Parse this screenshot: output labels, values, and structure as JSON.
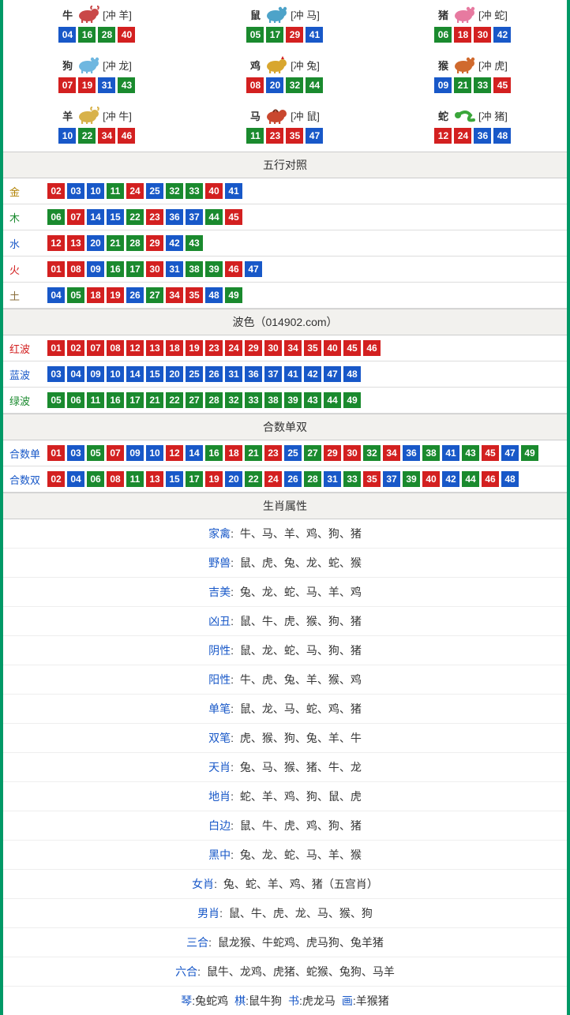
{
  "colors": {
    "accent_border": "#009966",
    "num_red": "#d32020",
    "num_blue": "#1858c8",
    "num_green": "#1a8a2e",
    "row_bg": "#ffffff",
    "header_bg": "#f2f1ee",
    "label_gold": "#b08000",
    "label_wood": "#1a8a2e",
    "label_water": "#1858c8",
    "label_fire": "#d32020",
    "label_earth": "#8a6d3b",
    "text": "#333333",
    "attr_key": "#1858c8"
  },
  "zodiac": {
    "cells": [
      {
        "name": "牛",
        "clash": "[冲 羊]",
        "icon": "ox",
        "icon_color": "#c94848",
        "nums": [
          {
            "v": "04",
            "c": "blue"
          },
          {
            "v": "16",
            "c": "green"
          },
          {
            "v": "28",
            "c": "green"
          },
          {
            "v": "40",
            "c": "red"
          }
        ]
      },
      {
        "name": "鼠",
        "clash": "[冲 马]",
        "icon": "rat",
        "icon_color": "#4da3c9",
        "nums": [
          {
            "v": "05",
            "c": "green"
          },
          {
            "v": "17",
            "c": "green"
          },
          {
            "v": "29",
            "c": "red"
          },
          {
            "v": "41",
            "c": "blue"
          }
        ]
      },
      {
        "name": "猪",
        "clash": "[冲 蛇]",
        "icon": "pig",
        "icon_color": "#e77aa0",
        "nums": [
          {
            "v": "06",
            "c": "green"
          },
          {
            "v": "18",
            "c": "red"
          },
          {
            "v": "30",
            "c": "red"
          },
          {
            "v": "42",
            "c": "blue"
          }
        ]
      },
      {
        "name": "狗",
        "clash": "[冲 龙]",
        "icon": "dog",
        "icon_color": "#6fb7e0",
        "nums": [
          {
            "v": "07",
            "c": "red"
          },
          {
            "v": "19",
            "c": "red"
          },
          {
            "v": "31",
            "c": "blue"
          },
          {
            "v": "43",
            "c": "green"
          }
        ]
      },
      {
        "name": "鸡",
        "clash": "[冲 兔]",
        "icon": "rooster",
        "icon_color": "#d8a62e",
        "nums": [
          {
            "v": "08",
            "c": "red"
          },
          {
            "v": "20",
            "c": "blue"
          },
          {
            "v": "32",
            "c": "green"
          },
          {
            "v": "44",
            "c": "green"
          }
        ]
      },
      {
        "name": "猴",
        "clash": "[冲 虎]",
        "icon": "monkey",
        "icon_color": "#d06a2e",
        "nums": [
          {
            "v": "09",
            "c": "blue"
          },
          {
            "v": "21",
            "c": "green"
          },
          {
            "v": "33",
            "c": "green"
          },
          {
            "v": "45",
            "c": "red"
          }
        ]
      },
      {
        "name": "羊",
        "clash": "[冲 牛]",
        "icon": "goat",
        "icon_color": "#d8b24a",
        "nums": [
          {
            "v": "10",
            "c": "blue"
          },
          {
            "v": "22",
            "c": "green"
          },
          {
            "v": "34",
            "c": "red"
          },
          {
            "v": "46",
            "c": "red"
          }
        ]
      },
      {
        "name": "马",
        "clash": "[冲 鼠]",
        "icon": "horse",
        "icon_color": "#c9472e",
        "nums": [
          {
            "v": "11",
            "c": "green"
          },
          {
            "v": "23",
            "c": "red"
          },
          {
            "v": "35",
            "c": "red"
          },
          {
            "v": "47",
            "c": "blue"
          }
        ]
      },
      {
        "name": "蛇",
        "clash": "[冲 猪]",
        "icon": "snake",
        "icon_color": "#3aa63a",
        "nums": [
          {
            "v": "12",
            "c": "red"
          },
          {
            "v": "24",
            "c": "red"
          },
          {
            "v": "36",
            "c": "blue"
          },
          {
            "v": "48",
            "c": "blue"
          }
        ]
      }
    ]
  },
  "wuxing": {
    "header": "五行对照",
    "rows": [
      {
        "label": "金",
        "label_class": "lbl-gold",
        "nums": [
          {
            "v": "02",
            "c": "red"
          },
          {
            "v": "03",
            "c": "blue"
          },
          {
            "v": "10",
            "c": "blue"
          },
          {
            "v": "11",
            "c": "green"
          },
          {
            "v": "24",
            "c": "red"
          },
          {
            "v": "25",
            "c": "blue"
          },
          {
            "v": "32",
            "c": "green"
          },
          {
            "v": "33",
            "c": "green"
          },
          {
            "v": "40",
            "c": "red"
          },
          {
            "v": "41",
            "c": "blue"
          }
        ]
      },
      {
        "label": "木",
        "label_class": "lbl-wood",
        "nums": [
          {
            "v": "06",
            "c": "green"
          },
          {
            "v": "07",
            "c": "red"
          },
          {
            "v": "14",
            "c": "blue"
          },
          {
            "v": "15",
            "c": "blue"
          },
          {
            "v": "22",
            "c": "green"
          },
          {
            "v": "23",
            "c": "red"
          },
          {
            "v": "36",
            "c": "blue"
          },
          {
            "v": "37",
            "c": "blue"
          },
          {
            "v": "44",
            "c": "green"
          },
          {
            "v": "45",
            "c": "red"
          }
        ]
      },
      {
        "label": "水",
        "label_class": "lbl-water",
        "nums": [
          {
            "v": "12",
            "c": "red"
          },
          {
            "v": "13",
            "c": "red"
          },
          {
            "v": "20",
            "c": "blue"
          },
          {
            "v": "21",
            "c": "green"
          },
          {
            "v": "28",
            "c": "green"
          },
          {
            "v": "29",
            "c": "red"
          },
          {
            "v": "42",
            "c": "blue"
          },
          {
            "v": "43",
            "c": "green"
          }
        ]
      },
      {
        "label": "火",
        "label_class": "lbl-fire",
        "nums": [
          {
            "v": "01",
            "c": "red"
          },
          {
            "v": "08",
            "c": "red"
          },
          {
            "v": "09",
            "c": "blue"
          },
          {
            "v": "16",
            "c": "green"
          },
          {
            "v": "17",
            "c": "green"
          },
          {
            "v": "30",
            "c": "red"
          },
          {
            "v": "31",
            "c": "blue"
          },
          {
            "v": "38",
            "c": "green"
          },
          {
            "v": "39",
            "c": "green"
          },
          {
            "v": "46",
            "c": "red"
          },
          {
            "v": "47",
            "c": "blue"
          }
        ]
      },
      {
        "label": "土",
        "label_class": "lbl-earth",
        "nums": [
          {
            "v": "04",
            "c": "blue"
          },
          {
            "v": "05",
            "c": "green"
          },
          {
            "v": "18",
            "c": "red"
          },
          {
            "v": "19",
            "c": "red"
          },
          {
            "v": "26",
            "c": "blue"
          },
          {
            "v": "27",
            "c": "green"
          },
          {
            "v": "34",
            "c": "red"
          },
          {
            "v": "35",
            "c": "red"
          },
          {
            "v": "48",
            "c": "blue"
          },
          {
            "v": "49",
            "c": "green"
          }
        ]
      }
    ]
  },
  "bose": {
    "header": "波色（014902.com）",
    "rows": [
      {
        "label": "红波",
        "label_class": "lbl-red",
        "nums": [
          {
            "v": "01",
            "c": "red"
          },
          {
            "v": "02",
            "c": "red"
          },
          {
            "v": "07",
            "c": "red"
          },
          {
            "v": "08",
            "c": "red"
          },
          {
            "v": "12",
            "c": "red"
          },
          {
            "v": "13",
            "c": "red"
          },
          {
            "v": "18",
            "c": "red"
          },
          {
            "v": "19",
            "c": "red"
          },
          {
            "v": "23",
            "c": "red"
          },
          {
            "v": "24",
            "c": "red"
          },
          {
            "v": "29",
            "c": "red"
          },
          {
            "v": "30",
            "c": "red"
          },
          {
            "v": "34",
            "c": "red"
          },
          {
            "v": "35",
            "c": "red"
          },
          {
            "v": "40",
            "c": "red"
          },
          {
            "v": "45",
            "c": "red"
          },
          {
            "v": "46",
            "c": "red"
          }
        ]
      },
      {
        "label": "蓝波",
        "label_class": "lbl-blue",
        "nums": [
          {
            "v": "03",
            "c": "blue"
          },
          {
            "v": "04",
            "c": "blue"
          },
          {
            "v": "09",
            "c": "blue"
          },
          {
            "v": "10",
            "c": "blue"
          },
          {
            "v": "14",
            "c": "blue"
          },
          {
            "v": "15",
            "c": "blue"
          },
          {
            "v": "20",
            "c": "blue"
          },
          {
            "v": "25",
            "c": "blue"
          },
          {
            "v": "26",
            "c": "blue"
          },
          {
            "v": "31",
            "c": "blue"
          },
          {
            "v": "36",
            "c": "blue"
          },
          {
            "v": "37",
            "c": "blue"
          },
          {
            "v": "41",
            "c": "blue"
          },
          {
            "v": "42",
            "c": "blue"
          },
          {
            "v": "47",
            "c": "blue"
          },
          {
            "v": "48",
            "c": "blue"
          }
        ]
      },
      {
        "label": "绿波",
        "label_class": "lbl-green",
        "nums": [
          {
            "v": "05",
            "c": "green"
          },
          {
            "v": "06",
            "c": "green"
          },
          {
            "v": "11",
            "c": "green"
          },
          {
            "v": "16",
            "c": "green"
          },
          {
            "v": "17",
            "c": "green"
          },
          {
            "v": "21",
            "c": "green"
          },
          {
            "v": "22",
            "c": "green"
          },
          {
            "v": "27",
            "c": "green"
          },
          {
            "v": "28",
            "c": "green"
          },
          {
            "v": "32",
            "c": "green"
          },
          {
            "v": "33",
            "c": "green"
          },
          {
            "v": "38",
            "c": "green"
          },
          {
            "v": "39",
            "c": "green"
          },
          {
            "v": "43",
            "c": "green"
          },
          {
            "v": "44",
            "c": "green"
          },
          {
            "v": "49",
            "c": "green"
          }
        ]
      }
    ]
  },
  "heshu": {
    "header": "合数单双",
    "rows": [
      {
        "label": "合数单",
        "label_class": "lbl-blue",
        "nums": [
          {
            "v": "01",
            "c": "red"
          },
          {
            "v": "03",
            "c": "blue"
          },
          {
            "v": "05",
            "c": "green"
          },
          {
            "v": "07",
            "c": "red"
          },
          {
            "v": "09",
            "c": "blue"
          },
          {
            "v": "10",
            "c": "blue"
          },
          {
            "v": "12",
            "c": "red"
          },
          {
            "v": "14",
            "c": "blue"
          },
          {
            "v": "16",
            "c": "green"
          },
          {
            "v": "18",
            "c": "red"
          },
          {
            "v": "21",
            "c": "green"
          },
          {
            "v": "23",
            "c": "red"
          },
          {
            "v": "25",
            "c": "blue"
          },
          {
            "v": "27",
            "c": "green"
          },
          {
            "v": "29",
            "c": "red"
          },
          {
            "v": "30",
            "c": "red"
          },
          {
            "v": "32",
            "c": "green"
          },
          {
            "v": "34",
            "c": "red"
          },
          {
            "v": "36",
            "c": "blue"
          },
          {
            "v": "38",
            "c": "green"
          },
          {
            "v": "41",
            "c": "blue"
          },
          {
            "v": "43",
            "c": "green"
          },
          {
            "v": "45",
            "c": "red"
          },
          {
            "v": "47",
            "c": "blue"
          },
          {
            "v": "49",
            "c": "green"
          }
        ]
      },
      {
        "label": "合数双",
        "label_class": "lbl-blue",
        "nums": [
          {
            "v": "02",
            "c": "red"
          },
          {
            "v": "04",
            "c": "blue"
          },
          {
            "v": "06",
            "c": "green"
          },
          {
            "v": "08",
            "c": "red"
          },
          {
            "v": "11",
            "c": "green"
          },
          {
            "v": "13",
            "c": "red"
          },
          {
            "v": "15",
            "c": "blue"
          },
          {
            "v": "17",
            "c": "green"
          },
          {
            "v": "19",
            "c": "red"
          },
          {
            "v": "20",
            "c": "blue"
          },
          {
            "v": "22",
            "c": "green"
          },
          {
            "v": "24",
            "c": "red"
          },
          {
            "v": "26",
            "c": "blue"
          },
          {
            "v": "28",
            "c": "green"
          },
          {
            "v": "31",
            "c": "blue"
          },
          {
            "v": "33",
            "c": "green"
          },
          {
            "v": "35",
            "c": "red"
          },
          {
            "v": "37",
            "c": "blue"
          },
          {
            "v": "39",
            "c": "green"
          },
          {
            "v": "40",
            "c": "red"
          },
          {
            "v": "42",
            "c": "blue"
          },
          {
            "v": "44",
            "c": "green"
          },
          {
            "v": "46",
            "c": "red"
          },
          {
            "v": "48",
            "c": "blue"
          }
        ]
      }
    ]
  },
  "attrs": {
    "header": "生肖属性",
    "rows": [
      {
        "key": "家禽",
        "val": "牛、马、羊、鸡、狗、猪"
      },
      {
        "key": "野兽",
        "val": "鼠、虎、兔、龙、蛇、猴"
      },
      {
        "key": "吉美",
        "val": "兔、龙、蛇、马、羊、鸡"
      },
      {
        "key": "凶丑",
        "val": "鼠、牛、虎、猴、狗、猪"
      },
      {
        "key": "阴性",
        "val": "鼠、龙、蛇、马、狗、猪"
      },
      {
        "key": "阳性",
        "val": "牛、虎、兔、羊、猴、鸡"
      },
      {
        "key": "单笔",
        "val": "鼠、龙、马、蛇、鸡、猪"
      },
      {
        "key": "双笔",
        "val": "虎、猴、狗、兔、羊、牛"
      },
      {
        "key": "天肖",
        "val": "兔、马、猴、猪、牛、龙"
      },
      {
        "key": "地肖",
        "val": "蛇、羊、鸡、狗、鼠、虎"
      },
      {
        "key": "白边",
        "val": "鼠、牛、虎、鸡、狗、猪"
      },
      {
        "key": "黑中",
        "val": "兔、龙、蛇、马、羊、猴"
      },
      {
        "key": "女肖",
        "val": "兔、蛇、羊、鸡、猪（五宫肖）"
      },
      {
        "key": "男肖",
        "val": "鼠、牛、虎、龙、马、猴、狗"
      },
      {
        "key": "三合",
        "val": "鼠龙猴、牛蛇鸡、虎马狗、兔羊猪"
      },
      {
        "key": "六合",
        "val": "鼠牛、龙鸡、虎猪、蛇猴、兔狗、马羊"
      }
    ],
    "bottom": [
      {
        "key": "琴",
        "val": "兔蛇鸡"
      },
      {
        "key": "棋",
        "val": "鼠牛狗"
      },
      {
        "key": "书",
        "val": "虎龙马"
      },
      {
        "key": "画",
        "val": "羊猴猪"
      }
    ]
  }
}
